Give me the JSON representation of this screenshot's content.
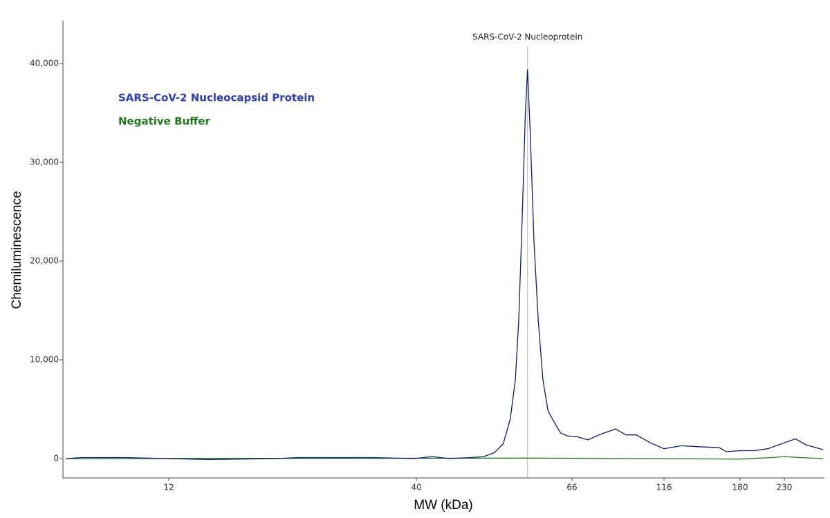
{
  "chart_data": {
    "type": "line",
    "x_label": "MW (kDa)",
    "y_label": "Chemiluminescence",
    "xlim": [
      7.2,
      287
    ],
    "xticks": [
      12,
      40,
      66,
      116,
      180,
      230
    ],
    "ylim": [
      -1960,
      44340
    ],
    "yticks": [
      0,
      {
        "value": 10000,
        "label": "10,000"
      },
      {
        "value": 20000,
        "label": "20,000"
      },
      {
        "value": 30000,
        "label": "30,000"
      },
      {
        "value": 40000,
        "label": "40,000"
      }
    ],
    "annotations": [
      {
        "text": "SARS-CoV-2 Nucleoprotein",
        "x": 57.2
      }
    ],
    "series": [
      {
        "name": "SARS-CoV-2 Nucleocapsid Protein",
        "color": "#0a1a7a",
        "label_color": "#2b3fbf",
        "x": [
          7.3,
          7.9,
          9.7,
          14.5,
          20.3,
          22.4,
          32.4,
          39.6,
          42.1,
          44.5,
          47.6,
          49.7,
          51.4,
          52.9,
          54.1,
          55.0,
          55.6,
          56.2,
          56.8,
          57.2,
          57.7,
          58.4,
          59.2,
          60.1,
          61.1,
          62.2,
          63.6,
          65.0,
          68.3,
          72.8,
          79.1,
          86.2,
          91.9,
          97.9,
          106.6,
          116,
          128.2,
          141.7,
          159.7,
          166.1,
          180,
          194.4,
          209.9,
          230,
          244.5,
          259.0,
          285.0
        ],
        "values": [
          0,
          100,
          100,
          -100,
          0,
          100,
          100,
          0,
          200,
          0,
          100,
          200,
          600,
          1500,
          4000,
          8000,
          14000,
          24000,
          35000,
          39400,
          33000,
          22000,
          14000,
          8000,
          4800,
          3800,
          2600,
          2300,
          2200,
          1900,
          2500,
          3000,
          2400,
          2400,
          1600,
          1000,
          1300,
          1200,
          1100,
          700,
          800,
          800,
          1000,
          1600,
          2000,
          1400,
          900
        ]
      },
      {
        "name": "Negative Buffer",
        "color": "#1a7a1a",
        "label_color": "#1a7a1a",
        "x": [
          7.3,
          57.2,
          116,
          180,
          215,
          230,
          250,
          285
        ],
        "values": [
          0,
          50,
          0,
          -50,
          100,
          200,
          100,
          0
        ]
      }
    ]
  }
}
